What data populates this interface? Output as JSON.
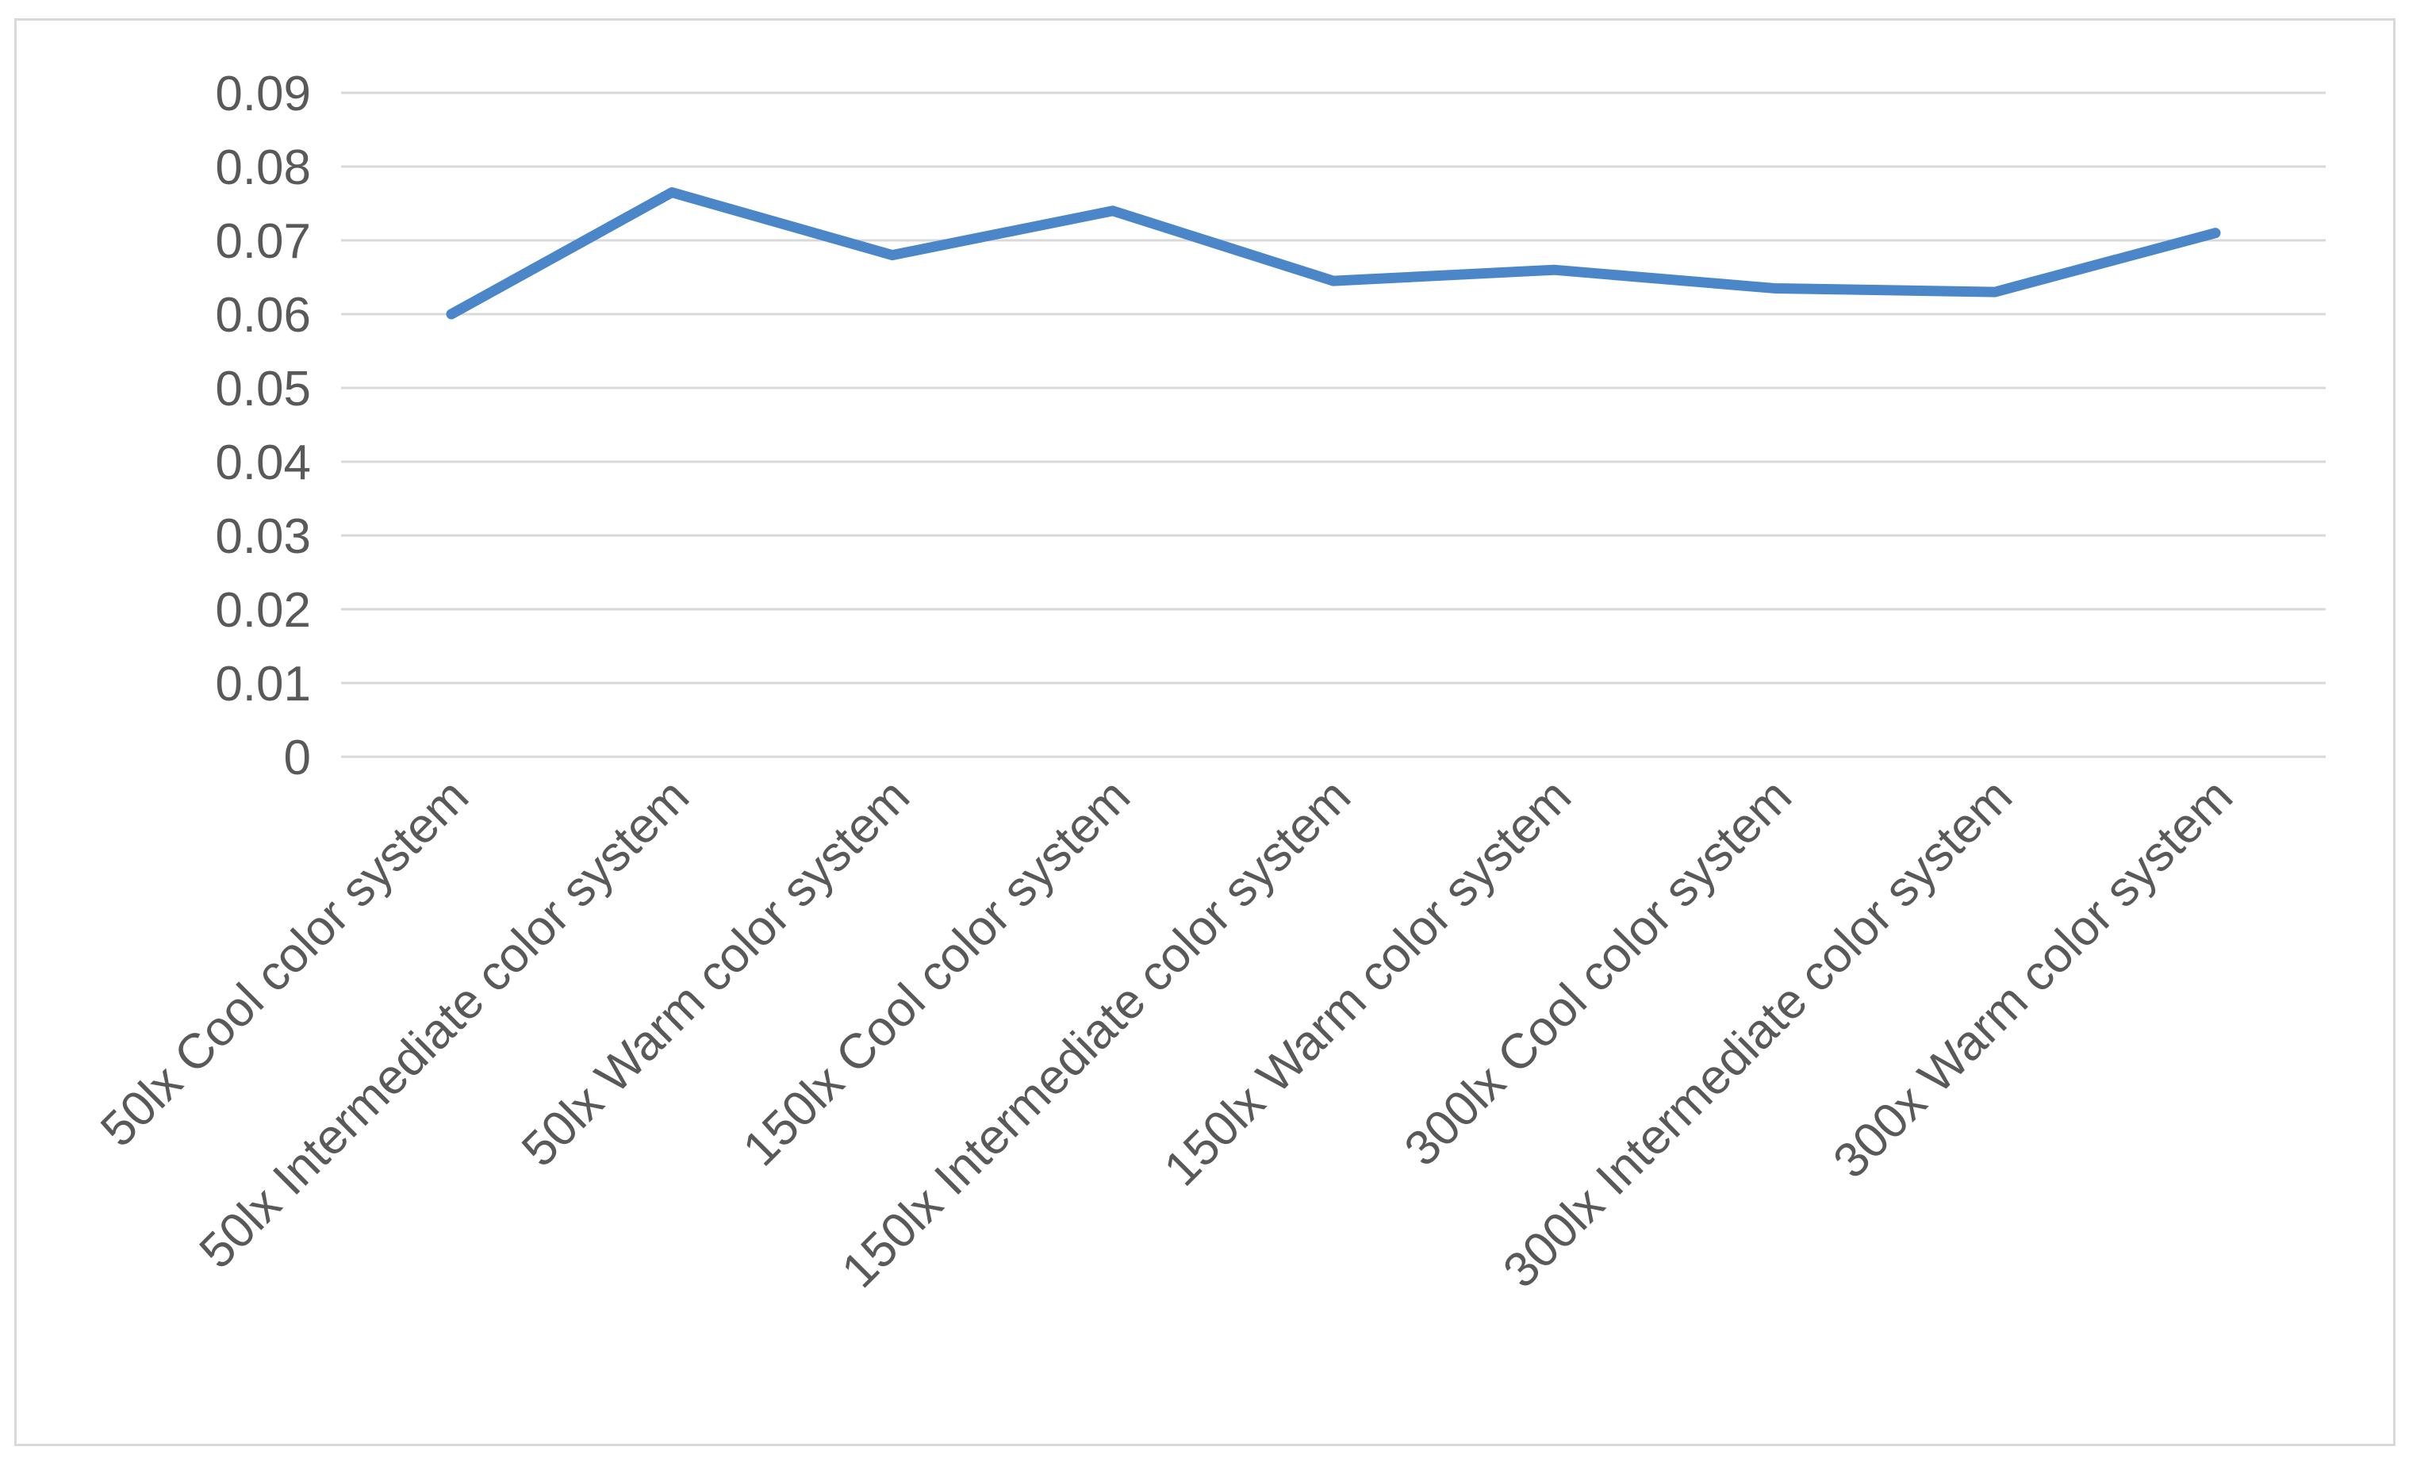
{
  "chart_data": {
    "type": "line",
    "title": "",
    "xlabel": "",
    "ylabel": "",
    "categories": [
      "50lx Cool color system",
      "50lx Intermediate color system",
      "50lx Warm color system",
      "150lx Cool color system",
      "150lx Intermediate color system",
      "150lx Warm color system",
      "300lx Cool color system",
      "300lx Intermediate color system",
      "300x Warm color system"
    ],
    "values": [
      0.06,
      0.0765,
      0.068,
      0.074,
      0.0645,
      0.066,
      0.0635,
      0.063,
      0.071
    ],
    "ylim": [
      0,
      0.09
    ],
    "ytick_step": 0.01,
    "ytick_labels": [
      "0",
      "0.01",
      "0.02",
      "0.03",
      "0.04",
      "0.05",
      "0.06",
      "0.07",
      "0.08",
      "0.09"
    ],
    "grid": "horizontal",
    "legend_position": "none",
    "x_label_rotation_deg": -45,
    "colors": {
      "line": "#4a86c8",
      "gridline": "#d9d9d9",
      "axis_text": "#595959",
      "frame_border": "#d9d9d9",
      "background": "#ffffff"
    }
  }
}
